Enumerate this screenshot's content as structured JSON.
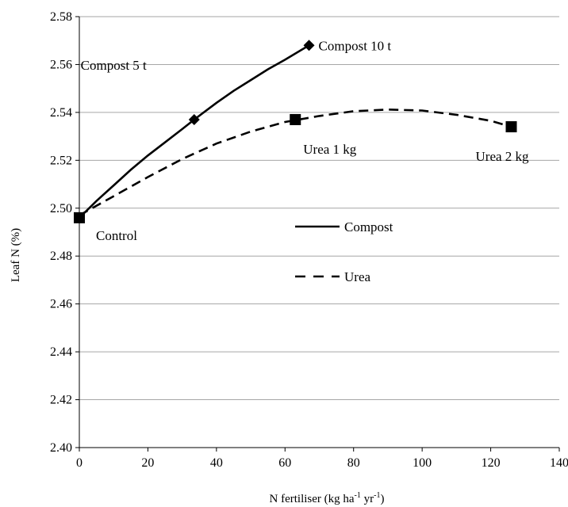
{
  "chart_data": {
    "type": "line",
    "title": "",
    "xlabel": "N fertiliser (kg ha",
    "xlabel_sup1": "-1",
    "xlabel_mid": " yr",
    "xlabel_sup2": "-1",
    "xlabel_end": ")",
    "ylabel": "Leaf N (%)",
    "xlim": [
      0,
      140
    ],
    "ylim": [
      2.4,
      2.58
    ],
    "xticks": [
      "0",
      "20",
      "40",
      "60",
      "80",
      "100",
      "120",
      "140"
    ],
    "yticks": [
      "2.40",
      "2.42",
      "2.44",
      "2.46",
      "2.48",
      "2.50",
      "2.52",
      "2.54",
      "2.56",
      "2.58"
    ],
    "grid": "horizontal",
    "legend_placement": "center",
    "series": [
      {
        "name": "Compost",
        "style": "solid",
        "marker": "diamond",
        "color": "#000000",
        "points": [
          {
            "x": 0,
            "y": 2.496
          },
          {
            "x": 33.5,
            "y": 2.537
          },
          {
            "x": 67,
            "y": 2.568
          }
        ],
        "curve": [
          [
            0,
            2.496
          ],
          [
            5,
            2.503
          ],
          [
            10,
            2.5095
          ],
          [
            15,
            2.516
          ],
          [
            20,
            2.522
          ],
          [
            25,
            2.5275
          ],
          [
            30,
            2.533
          ],
          [
            33.5,
            2.537
          ],
          [
            40,
            2.544
          ],
          [
            45,
            2.549
          ],
          [
            50,
            2.5535
          ],
          [
            55,
            2.558
          ],
          [
            60,
            2.562
          ],
          [
            67,
            2.568
          ]
        ]
      },
      {
        "name": "Urea",
        "style": "dashed",
        "marker": "square",
        "color": "#000000",
        "points": [
          {
            "x": 0,
            "y": 2.496
          },
          {
            "x": 63,
            "y": 2.537
          },
          {
            "x": 126,
            "y": 2.534
          }
        ],
        "curve": [
          [
            0,
            2.497
          ],
          [
            10,
            2.505
          ],
          [
            20,
            2.513
          ],
          [
            30,
            2.5205
          ],
          [
            40,
            2.527
          ],
          [
            50,
            2.532
          ],
          [
            60,
            2.536
          ],
          [
            70,
            2.5385
          ],
          [
            80,
            2.5405
          ],
          [
            90,
            2.5412
          ],
          [
            100,
            2.5408
          ],
          [
            110,
            2.539
          ],
          [
            120,
            2.5365
          ],
          [
            126,
            2.534
          ]
        ]
      }
    ],
    "annotations": [
      {
        "text": "Compost 10 t",
        "x": 67,
        "y": 2.568,
        "anchor": "right"
      },
      {
        "text": "Compost 5 t",
        "x": 33.5,
        "y": 2.537,
        "anchor": "above-left"
      },
      {
        "text": "Urea 1 kg",
        "x": 63,
        "y": 2.537,
        "anchor": "below"
      },
      {
        "text": "Urea 2 kg",
        "x": 126,
        "y": 2.534,
        "anchor": "below-left"
      },
      {
        "text": "Control",
        "x": 0,
        "y": 2.496,
        "anchor": "right-below"
      }
    ]
  }
}
